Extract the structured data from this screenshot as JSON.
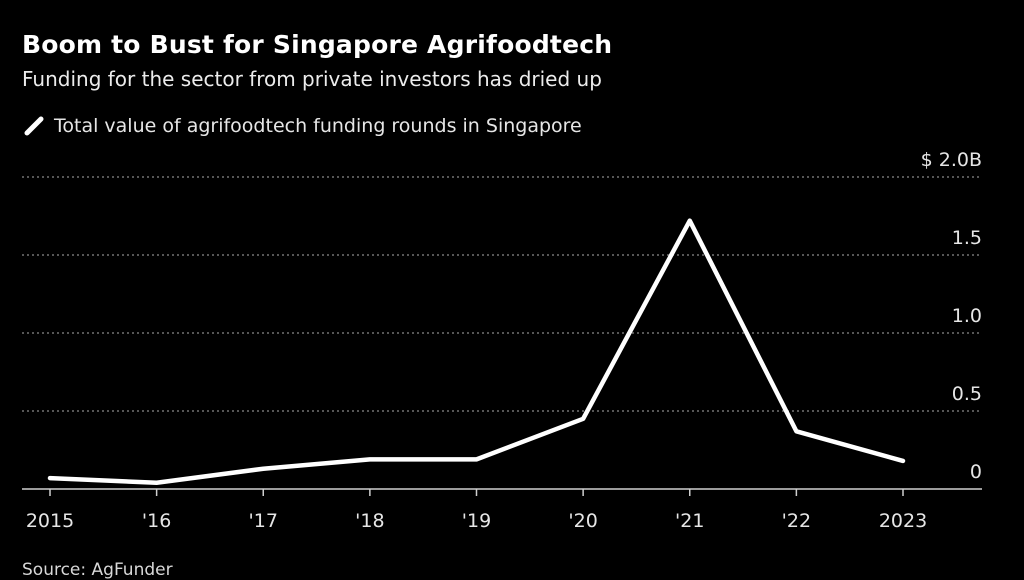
{
  "header": {
    "title": "Boom to Bust for Singapore Agrifoodtech",
    "subtitle": "Funding for the sector from private investors has dried up"
  },
  "legend": {
    "label": "Total value of agrifoodtech funding rounds in Singapore"
  },
  "source": "Source: AgFunder",
  "colors": {
    "background": "#000000",
    "line": "#ffffff",
    "grid": "#8a8a8a",
    "text": "#e6e6e6"
  },
  "chart_data": {
    "type": "line",
    "title": "Boom to Bust for Singapore Agrifoodtech",
    "subtitle": "Funding for the sector from private investors has dried up",
    "x": [
      2015,
      2016,
      2017,
      2018,
      2019,
      2020,
      2021,
      2022,
      2023
    ],
    "x_tick_labels": [
      "2015",
      "'16",
      "'17",
      "'18",
      "'19",
      "'20",
      "'21",
      "'22",
      "2023"
    ],
    "series": [
      {
        "name": "Total value of agrifoodtech funding rounds in Singapore",
        "unit": "$B",
        "values": [
          0.07,
          0.04,
          0.13,
          0.19,
          0.19,
          0.45,
          1.72,
          0.37,
          0.18
        ]
      }
    ],
    "ylim": [
      0,
      2.0
    ],
    "y_ticks": [
      0,
      0.5,
      1.0,
      1.5,
      2.0
    ],
    "y_tick_labels": [
      "0",
      "0.5",
      "1.0",
      "1.5",
      "$ 2.0B"
    ],
    "y_axis_side": "right",
    "grid": "horizontal dotted",
    "legend_position": "top-left",
    "source": "Source: AgFunder"
  }
}
